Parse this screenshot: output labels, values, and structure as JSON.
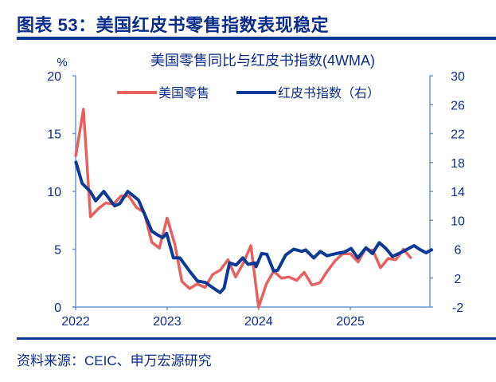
{
  "figure_title": "图表 53：美国红皮书零售指数表现稳定",
  "source": "资料来源：CEIC、申万宏源研究",
  "chart_data": {
    "type": "line",
    "title": "美国零售同比与红皮书指数(4WMA)",
    "left_unit": "%",
    "left_ylim": [
      0,
      20
    ],
    "left_ticks": [
      "0",
      "5",
      "10",
      "15",
      "20"
    ],
    "right_ylim": [
      -2,
      30
    ],
    "right_ticks": [
      "-2",
      "2",
      "6",
      "10",
      "14",
      "18",
      "22",
      "26",
      "30"
    ],
    "x_ticks": [
      "2022",
      "2023",
      "2024",
      "2025"
    ],
    "grid": false,
    "legend_placement": "top",
    "colors": {
      "retail": "#e8605e",
      "redbook": "#0b3a96",
      "axis": "#6b95c8",
      "text": "#0b2d8c"
    },
    "series": [
      {
        "name": "美国零售",
        "axis": "left",
        "x": [
          "2022-01",
          "2022-02",
          "2022-03",
          "2022-04",
          "2022-05",
          "2022-06",
          "2022-07",
          "2022-08",
          "2022-09",
          "2022-10",
          "2022-11",
          "2022-12",
          "2023-01",
          "2023-02",
          "2023-03",
          "2023-04",
          "2023-05",
          "2023-06",
          "2023-07",
          "2023-08",
          "2023-09",
          "2023-10",
          "2023-11",
          "2023-12",
          "2024-01",
          "2024-02",
          "2024-03",
          "2024-04",
          "2024-05",
          "2024-06",
          "2024-07",
          "2024-08",
          "2024-09",
          "2024-10",
          "2024-11",
          "2024-12",
          "2025-01",
          "2025-02",
          "2025-03",
          "2025-04",
          "2025-05",
          "2025-06",
          "2025-07",
          "2025-08",
          "2025-09"
        ],
        "values": [
          13.0,
          17.1,
          7.8,
          8.5,
          9.0,
          8.9,
          9.6,
          9.6,
          8.6,
          8.2,
          5.6,
          5.1,
          7.7,
          5.4,
          2.2,
          1.6,
          2.0,
          1.7,
          2.8,
          3.2,
          4.1,
          2.6,
          3.8,
          5.3,
          0.0,
          2.0,
          3.1,
          2.5,
          2.6,
          2.3,
          3.0,
          1.9,
          2.1,
          3.1,
          4.0,
          4.6,
          4.6,
          3.9,
          5.0,
          4.9,
          3.4,
          4.2,
          4.1,
          5.0,
          4.2
        ]
      },
      {
        "name": "红皮书指数（右）",
        "axis": "right",
        "x": [
          "2022-01-01",
          "2022-01-27",
          "2022-02-28",
          "2022-03-22",
          "2022-04-23",
          "2022-06-05",
          "2022-06-26",
          "2022-07-28",
          "2022-09-09",
          "2022-09-30",
          "2022-11-01",
          "2022-11-23",
          "2022-12-14",
          "2022-12-30",
          "2023-01-26",
          "2023-02-21",
          "2023-03-31",
          "2023-05-02",
          "2023-06-03",
          "2023-07-05",
          "2023-07-31",
          "2023-08-16",
          "2023-09-07",
          "2023-10-03",
          "2023-10-30",
          "2023-11-20",
          "2023-12-17",
          "2023-12-22",
          "2024-01-13",
          "2024-02-03",
          "2024-03-01",
          "2024-03-17",
          "2024-04-18",
          "2024-05-20",
          "2024-06-21",
          "2024-07-07",
          "2024-08-08",
          "2024-09-03",
          "2024-09-30",
          "2024-11-06",
          "2024-12-08",
          "2025-01-04",
          "2025-01-31",
          "2025-03-04",
          "2025-03-30",
          "2025-04-26",
          "2025-05-23",
          "2025-06-18",
          "2025-07-20",
          "2025-08-16",
          "2025-09-12",
          "2025-10-03",
          "2025-10-30",
          "2025-11-25"
        ],
        "values": [
          18.2,
          15.1,
          14.0,
          12.7,
          14.0,
          12.0,
          12.3,
          14.0,
          12.8,
          11.1,
          8.5,
          8.0,
          7.6,
          8.2,
          4.8,
          4.8,
          3.0,
          1.6,
          1.4,
          0.6,
          0.0,
          0.6,
          4.1,
          3.8,
          4.8,
          3.9,
          4.1,
          3.6,
          5.4,
          5.3,
          3.0,
          3.1,
          5.2,
          6.0,
          5.7,
          5.9,
          4.8,
          5.7,
          5.1,
          5.4,
          5.6,
          6.1,
          4.8,
          6.2,
          5.4,
          6.9,
          6.1,
          5.0,
          5.5,
          6.0,
          6.5,
          6.0,
          5.5,
          6.0
        ]
      }
    ]
  }
}
